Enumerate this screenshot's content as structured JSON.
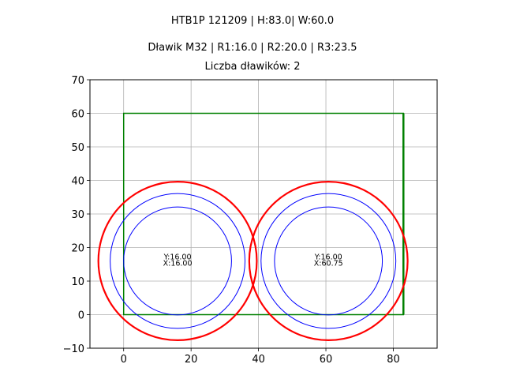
{
  "titles": {
    "line1": "HTB1P 121209 | H:83.0| W:60.0",
    "line2": "Dławik M32 | R1:16.0 | R2:20.0 | R3:23.5",
    "line3": "Liczba dławików: 2"
  },
  "chart_data": {
    "type": "scatter",
    "title": "HTB1P 121209 | H:83.0| W:60.0 / Dławik M32 | R1:16.0 | R2:20.0 | R3:23.5 / Liczba dławików: 2",
    "xlabel": "",
    "ylabel": "",
    "xlim": [
      -10,
      93
    ],
    "ylim": [
      -10,
      70
    ],
    "grid": true,
    "x_ticks": [
      0,
      20,
      40,
      60,
      80
    ],
    "y_ticks": [
      -10,
      0,
      10,
      20,
      30,
      40,
      50,
      60,
      70
    ],
    "rectangle": {
      "x0": 0,
      "y0": 0,
      "x1": 83,
      "y1": 60,
      "color": "#008000"
    },
    "radii": {
      "R1": 16.0,
      "R2": 20.0,
      "R3": 23.5
    },
    "circles": [
      {
        "cx": 16.0,
        "cy": 16.0,
        "label_y": "Y:16.00",
        "label_x": "X:16.00"
      },
      {
        "cx": 60.75,
        "cy": 16.0,
        "label_y": "Y:16.00",
        "label_x": "X:60.75"
      }
    ],
    "colors": {
      "R1": "#0000ff",
      "R2": "#0000ff",
      "R3": "#ff0000",
      "grid": "#b0b0b0"
    }
  }
}
